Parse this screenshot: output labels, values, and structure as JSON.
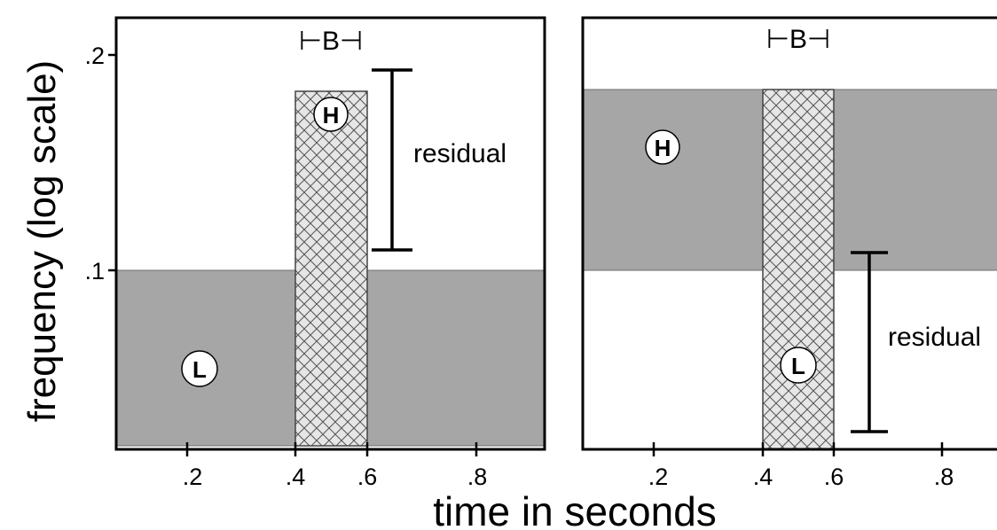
{
  "y_axis_label": "frequency (log scale)",
  "x_axis_label": "time in seconds",
  "colors": {
    "band_fill": "#a6a6a6",
    "hatch_fill": "#e6e6e6",
    "hatch_line": "#555555",
    "axis": "#000000",
    "marker_fill": "#ffffff"
  },
  "panels": [
    {
      "y_ticks": [
        ".2",
        ".1"
      ],
      "x_ticks": [
        ".2",
        ".4",
        ".6",
        ".8"
      ],
      "boundary_label": "⊢B⊣",
      "high_marker": "H",
      "low_marker": "L",
      "residual_label": "residual"
    },
    {
      "x_ticks": [
        ".2",
        ".4",
        ".6",
        ".8"
      ],
      "boundary_label": "⊢B⊣",
      "high_marker": "H",
      "low_marker": "L",
      "residual_label": "residual"
    }
  ]
}
